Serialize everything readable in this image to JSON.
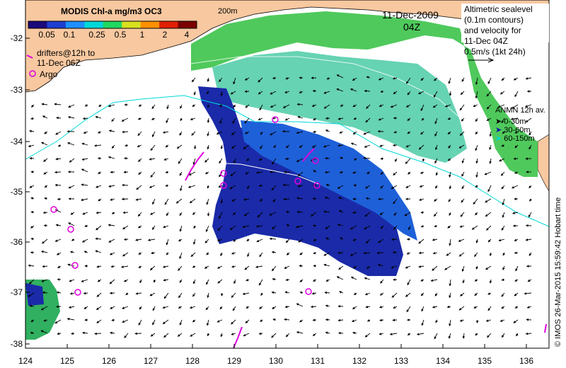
{
  "colorbar": {
    "title": "MODIS Chl-a mg/m3 OC3",
    "ticks": [
      "0.05",
      "0.1",
      "0.25",
      "0.5",
      "1",
      "2",
      "4"
    ],
    "colors": [
      "#1a0a7a",
      "#1e3fd0",
      "#1e90ff",
      "#00d8d8",
      "#20d860",
      "#d8e020",
      "#ff9000",
      "#e02000",
      "#7a0000"
    ]
  },
  "date_line": "11-Dec-2009",
  "time_line": "04Z",
  "contour_label": "200m",
  "drifters": {
    "line1": "drifters@12h to",
    "line2": "11-Dec 06Z"
  },
  "argo": "Argo",
  "altimetry": {
    "line1": "Altimetric sealevel",
    "line2": "(0.1m contours)",
    "line3": "and velocity for",
    "line4": "11-Dec 04Z",
    "line5": "0.5m/s (1kt 24h)"
  },
  "anmn": {
    "title": "ANMN 12h av.",
    "items": [
      {
        "label": "0-30m",
        "color": "#000000"
      },
      {
        "label": "30-60m",
        "color": "#1010a0"
      },
      {
        "label": "60-150m",
        "color": "#00d8d8"
      }
    ]
  },
  "axes": {
    "x_ticks": [
      "124",
      "125",
      "126",
      "127",
      "128",
      "129",
      "130",
      "131",
      "132",
      "133",
      "134",
      "135",
      "136"
    ],
    "y_ticks": [
      "-32",
      "-33",
      "-34",
      "-35",
      "-36",
      "-37",
      "-38"
    ]
  },
  "credit": "© IMOS 26-Mar-2015 15:59:42 Hobart time",
  "land_color": "#f8c8a0"
}
